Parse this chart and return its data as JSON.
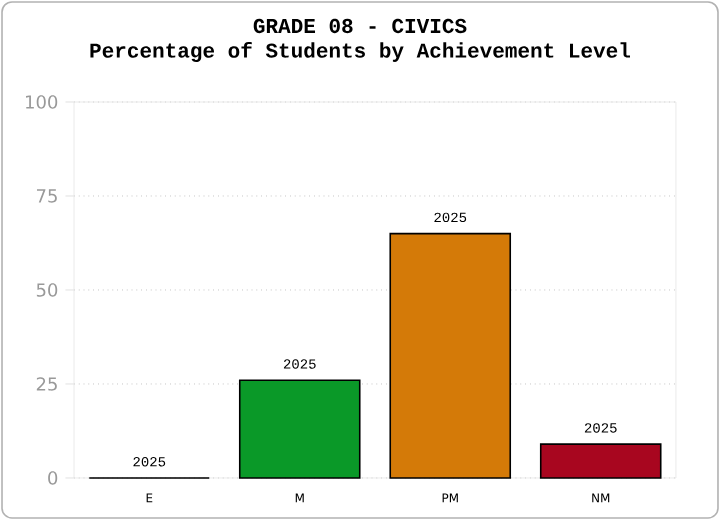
{
  "chart_data": {
    "type": "bar",
    "title": "GRADE 08 - CIVICS",
    "subtitle": "Percentage of Students by Achievement Level",
    "categories": [
      "E",
      "M",
      "PM",
      "NM"
    ],
    "series": [
      {
        "name": "2025",
        "values": [
          0,
          26,
          65,
          9
        ],
        "colors": [
          "#0a9928",
          "#0a9928",
          "#d47a08",
          "#a8061f"
        ]
      }
    ],
    "ylim": [
      0,
      100
    ],
    "yticks": [
      0,
      25,
      50,
      75,
      100
    ],
    "grid": "y"
  }
}
